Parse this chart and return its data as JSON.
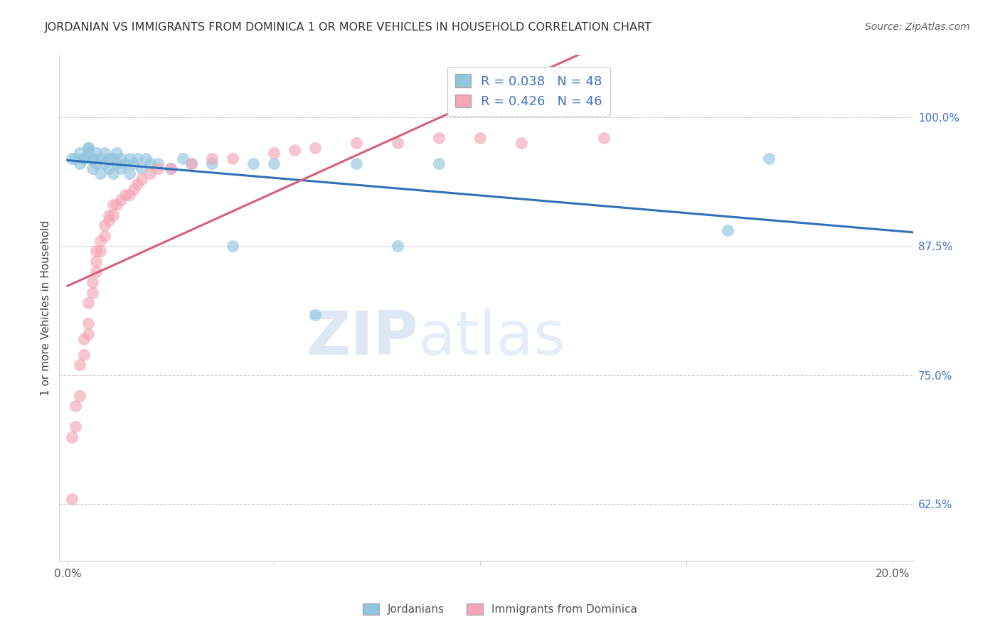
{
  "title": "JORDANIAN VS IMMIGRANTS FROM DOMINICA 1 OR MORE VEHICLES IN HOUSEHOLD CORRELATION CHART",
  "source": "Source: ZipAtlas.com",
  "ylabel": "1 or more Vehicles in Household",
  "xlabel_ticks": [
    "0.0%",
    "",
    "",
    "",
    "20.0%"
  ],
  "xlabel_vals": [
    0.0,
    0.05,
    0.1,
    0.15,
    0.2
  ],
  "ylabel_ticks": [
    "62.5%",
    "75.0%",
    "87.5%",
    "100.0%"
  ],
  "ylabel_vals": [
    0.625,
    0.75,
    0.875,
    1.0
  ],
  "xlim": [
    -0.002,
    0.205
  ],
  "ylim": [
    0.57,
    1.06
  ],
  "legend_label1": "Jordanians",
  "legend_label2": "Immigrants from Dominica",
  "R_blue": 0.038,
  "N_blue": 48,
  "R_pink": 0.426,
  "N_pink": 46,
  "color_blue": "#92c5de",
  "color_pink": "#f4a6b8",
  "trendline_blue": "#3070b8",
  "trendline_pink": "#d4607a",
  "watermark_zip": "ZIP",
  "watermark_atlas": "atlas",
  "blue_x": [
    0.001,
    0.002,
    0.003,
    0.004,
    0.005,
    0.005,
    0.006,
    0.006,
    0.007,
    0.007,
    0.008,
    0.008,
    0.009,
    0.009,
    0.01,
    0.01,
    0.011,
    0.011,
    0.012,
    0.012,
    0.013,
    0.013,
    0.014,
    0.015,
    0.015,
    0.016,
    0.017,
    0.018,
    0.019,
    0.02,
    0.022,
    0.025,
    0.028,
    0.03,
    0.035,
    0.04,
    0.045,
    0.05,
    0.06,
    0.07,
    0.08,
    0.09,
    0.16,
    0.17,
    0.003,
    0.004,
    0.005,
    0.006
  ],
  "blue_y": [
    0.96,
    0.96,
    0.955,
    0.96,
    0.97,
    0.965,
    0.96,
    0.95,
    0.965,
    0.955,
    0.96,
    0.945,
    0.955,
    0.965,
    0.96,
    0.95,
    0.96,
    0.945,
    0.955,
    0.965,
    0.96,
    0.95,
    0.955,
    0.96,
    0.945,
    0.955,
    0.96,
    0.95,
    0.96,
    0.955,
    0.955,
    0.95,
    0.96,
    0.955,
    0.955,
    0.875,
    0.955,
    0.955,
    0.808,
    0.955,
    0.875,
    0.955,
    0.89,
    0.96,
    0.965,
    0.96,
    0.97,
    0.96
  ],
  "pink_x": [
    0.001,
    0.001,
    0.002,
    0.002,
    0.003,
    0.003,
    0.004,
    0.004,
    0.005,
    0.005,
    0.005,
    0.006,
    0.006,
    0.007,
    0.007,
    0.007,
    0.008,
    0.008,
    0.009,
    0.009,
    0.01,
    0.01,
    0.011,
    0.011,
    0.012,
    0.013,
    0.014,
    0.015,
    0.016,
    0.017,
    0.018,
    0.02,
    0.022,
    0.025,
    0.03,
    0.035,
    0.04,
    0.05,
    0.055,
    0.06,
    0.07,
    0.08,
    0.09,
    0.1,
    0.11,
    0.13
  ],
  "pink_y": [
    0.63,
    0.69,
    0.7,
    0.72,
    0.73,
    0.76,
    0.77,
    0.785,
    0.79,
    0.8,
    0.82,
    0.83,
    0.84,
    0.85,
    0.86,
    0.87,
    0.87,
    0.88,
    0.885,
    0.895,
    0.9,
    0.905,
    0.905,
    0.915,
    0.915,
    0.92,
    0.925,
    0.925,
    0.93,
    0.935,
    0.94,
    0.945,
    0.95,
    0.95,
    0.955,
    0.96,
    0.96,
    0.965,
    0.968,
    0.97,
    0.975,
    0.975,
    0.98,
    0.98,
    0.975,
    0.98
  ]
}
